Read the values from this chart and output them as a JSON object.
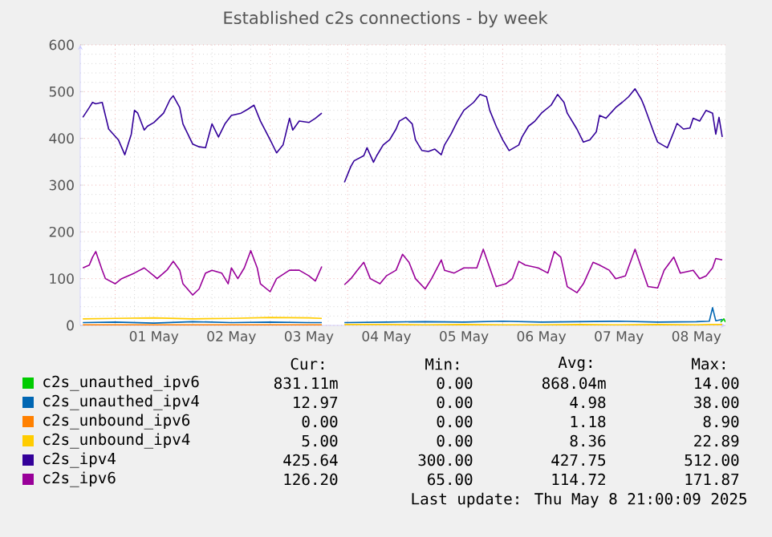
{
  "chart_data": {
    "type": "line",
    "title": "Established c2s connections - by week",
    "xlim": [
      "2025-04-30T13:12",
      "2025-05-08T21:00"
    ],
    "ylim": [
      0,
      600
    ],
    "xticks": [
      {
        "value": "2025-05-01T00:00",
        "label": null
      },
      {
        "value": "2025-05-01T12:00",
        "label": "01 May"
      },
      {
        "value": "2025-05-02T00:00",
        "label": null
      },
      {
        "value": "2025-05-02T12:00",
        "label": "02 May"
      },
      {
        "value": "2025-05-03T00:00",
        "label": null
      },
      {
        "value": "2025-05-03T12:00",
        "label": "03 May"
      },
      {
        "value": "2025-05-04T00:00",
        "label": null
      },
      {
        "value": "2025-05-04T12:00",
        "label": "04 May"
      },
      {
        "value": "2025-05-05T00:00",
        "label": null
      },
      {
        "value": "2025-05-05T12:00",
        "label": "05 May"
      },
      {
        "value": "2025-05-06T00:00",
        "label": null
      },
      {
        "value": "2025-05-06T12:00",
        "label": "06 May"
      },
      {
        "value": "2025-05-07T00:00",
        "label": null
      },
      {
        "value": "2025-05-07T12:00",
        "label": "07 May"
      },
      {
        "value": "2025-05-08T00:00",
        "label": null
      },
      {
        "value": "2025-05-08T12:00",
        "label": "08 May"
      }
    ],
    "yticks": [
      0,
      100,
      200,
      300,
      400,
      500,
      600
    ],
    "grid": true,
    "legend": "bottom",
    "marker": "none",
    "line_style": "solid",
    "series": [
      {
        "name": "c2s_unauthed_ipv6",
        "color": "#00cc00",
        "x": [
          "2025-05-08T19:30",
          "2025-05-08T20:30",
          "2025-05-08T21:00"
        ],
        "values": [
          7,
          14,
          7
        ]
      },
      {
        "name": "c2s_unauthed_ipv4",
        "color": "#0066b3",
        "x": [
          "2025-04-30T14:00",
          "2025-05-01T00:00",
          "2025-05-01T12:00",
          "2025-05-02T00:00",
          "2025-05-02T12:00",
          "2025-05-03T00:00",
          "2025-05-03T12:00",
          "2025-05-03T16:00",
          "2025-05-03T19:00",
          "2025-05-03T23:00",
          "2025-05-04T12:00",
          "2025-05-05T00:00",
          "2025-05-05T12:00",
          "2025-05-06T00:00",
          "2025-05-06T12:00",
          "2025-05-07T00:00",
          "2025-05-07T12:00",
          "2025-05-08T00:00",
          "2025-05-08T12:00",
          "2025-05-08T16:00",
          "2025-05-08T17:00",
          "2025-05-08T18:00",
          "2025-05-08T20:00"
        ],
        "values": [
          6,
          7,
          5,
          8,
          6,
          7,
          6,
          6,
          null,
          6,
          7,
          8,
          7,
          9,
          7,
          8,
          9,
          7,
          8,
          9,
          38,
          10,
          13
        ]
      },
      {
        "name": "c2s_unbound_ipv6",
        "color": "#ff8000",
        "x": [
          "2025-04-30T14:00",
          "2025-05-01T00:00",
          "2025-05-01T12:00",
          "2025-05-02T00:00",
          "2025-05-02T12:00",
          "2025-05-03T00:00",
          "2025-05-03T12:00",
          "2025-05-03T16:00"
        ],
        "values": [
          1,
          1,
          1,
          1,
          1,
          1,
          1,
          1
        ]
      },
      {
        "name": "c2s_unbound_ipv4",
        "color": "#ffcc00",
        "x": [
          "2025-04-30T14:00",
          "2025-05-01T00:00",
          "2025-05-01T12:00",
          "2025-05-02T00:00",
          "2025-05-02T12:00",
          "2025-05-03T00:00",
          "2025-05-03T12:00",
          "2025-05-03T16:00",
          "2025-05-03T19:00",
          "2025-05-03T23:00",
          "2025-05-04T12:00",
          "2025-05-05T00:00",
          "2025-05-05T12:00",
          "2025-05-06T00:00",
          "2025-05-06T12:00",
          "2025-05-07T00:00",
          "2025-05-07T12:00",
          "2025-05-08T00:00",
          "2025-05-08T12:00",
          "2025-05-08T16:00",
          "2025-05-08T17:00",
          "2025-05-08T18:00",
          "2025-05-08T20:00"
        ],
        "values": [
          14,
          15,
          16,
          14,
          15,
          17,
          16,
          15,
          null,
          2,
          2,
          1,
          2,
          1,
          1,
          2,
          1,
          2,
          1,
          2,
          2,
          2,
          2
        ]
      },
      {
        "name": "c2s_ipv4",
        "color": "#330099",
        "x": [
          "2025-04-30T14:00",
          "2025-04-30T16:00",
          "2025-04-30T17:00",
          "2025-04-30T18:00",
          "2025-04-30T20:00",
          "2025-04-30T22:00",
          "2025-05-01T01:00",
          "2025-05-01T03:00",
          "2025-05-01T05:00",
          "2025-05-01T06:00",
          "2025-05-01T07:00",
          "2025-05-01T09:00",
          "2025-05-01T10:00",
          "2025-05-01T12:00",
          "2025-05-01T15:00",
          "2025-05-01T17:00",
          "2025-05-01T18:00",
          "2025-05-01T20:00",
          "2025-05-01T21:00",
          "2025-05-02T00:00",
          "2025-05-02T02:00",
          "2025-05-02T04:00",
          "2025-05-02T06:00",
          "2025-05-02T08:00",
          "2025-05-02T10:00",
          "2025-05-02T12:00",
          "2025-05-02T15:00",
          "2025-05-02T17:00",
          "2025-05-02T19:00",
          "2025-05-02T21:00",
          "2025-05-03T00:00",
          "2025-05-03T02:00",
          "2025-05-03T04:00",
          "2025-05-03T06:00",
          "2025-05-03T07:00",
          "2025-05-03T09:00",
          "2025-05-03T12:00",
          "2025-05-03T14:00",
          "2025-05-03T16:00",
          "2025-05-03T19:00",
          "2025-05-03T23:00",
          "2025-05-04T01:00",
          "2025-05-04T02:00",
          "2025-05-04T05:00",
          "2025-05-04T06:00",
          "2025-05-04T08:00",
          "2025-05-04T09:00",
          "2025-05-04T11:00",
          "2025-05-04T13:00",
          "2025-05-04T15:00",
          "2025-05-04T16:00",
          "2025-05-04T18:00",
          "2025-05-04T20:00",
          "2025-05-04T21:00",
          "2025-05-04T23:00",
          "2025-05-05T01:00",
          "2025-05-05T03:00",
          "2025-05-05T05:00",
          "2025-05-05T06:00",
          "2025-05-05T08:00",
          "2025-05-05T10:00",
          "2025-05-05T12:00",
          "2025-05-05T15:00",
          "2025-05-05T17:00",
          "2025-05-05T19:00",
          "2025-05-05T20:00",
          "2025-05-05T22:00",
          "2025-05-06T00:00",
          "2025-05-06T02:00",
          "2025-05-06T05:00",
          "2025-05-06T06:00",
          "2025-05-06T08:00",
          "2025-05-06T10:00",
          "2025-05-06T12:00",
          "2025-05-06T15:00",
          "2025-05-06T17:00",
          "2025-05-06T19:00",
          "2025-05-06T20:00",
          "2025-05-06T23:00",
          "2025-05-07T01:00",
          "2025-05-07T03:00",
          "2025-05-07T05:00",
          "2025-05-07T06:00",
          "2025-05-07T08:00",
          "2025-05-07T11:00",
          "2025-05-07T13:00",
          "2025-05-07T15:00",
          "2025-05-07T17:00",
          "2025-05-07T19:00",
          "2025-05-07T20:00",
          "2025-05-07T23:00",
          "2025-05-08T00:00",
          "2025-05-08T03:00",
          "2025-05-08T05:00",
          "2025-05-08T06:00",
          "2025-05-08T08:00",
          "2025-05-08T10:00",
          "2025-05-08T11:00",
          "2025-05-08T13:00",
          "2025-05-08T15:00",
          "2025-05-08T17:00",
          "2025-05-08T18:00",
          "2025-05-08T19:00",
          "2025-05-08T20:00"
        ],
        "values": [
          445,
          466,
          477,
          474,
          477,
          420,
          397,
          365,
          409,
          460,
          454,
          418,
          426,
          434,
          454,
          483,
          491,
          466,
          431,
          388,
          382,
          380,
          431,
          403,
          431,
          449,
          454,
          462,
          471,
          437,
          397,
          369,
          386,
          443,
          418,
          437,
          434,
          443,
          454,
          null,
          306,
          340,
          352,
          363,
          380,
          349,
          363,
          386,
          397,
          420,
          437,
          445,
          431,
          397,
          374,
          372,
          377,
          365,
          386,
          409,
          437,
          460,
          477,
          494,
          489,
          460,
          426,
          397,
          374,
          386,
          403,
          426,
          437,
          454,
          471,
          494,
          477,
          454,
          420,
          392,
          397,
          414,
          449,
          443,
          466,
          477,
          489,
          506,
          483,
          466,
          409,
          392,
          380,
          414,
          432,
          420,
          422,
          443,
          437,
          460,
          454,
          409,
          445,
          403
        ]
      },
      {
        "name": "c2s_ipv6",
        "color": "#990099",
        "x": [
          "2025-04-30T14:00",
          "2025-04-30T16:00",
          "2025-04-30T17:00",
          "2025-04-30T18:00",
          "2025-04-30T20:00",
          "2025-04-30T21:00",
          "2025-05-01T00:00",
          "2025-05-01T02:00",
          "2025-05-01T06:00",
          "2025-05-01T09:00",
          "2025-05-01T12:00",
          "2025-05-01T13:00",
          "2025-05-01T16:00",
          "2025-05-01T18:00",
          "2025-05-01T20:00",
          "2025-05-01T21:00",
          "2025-05-02T00:00",
          "2025-05-02T02:00",
          "2025-05-02T04:00",
          "2025-05-02T06:00",
          "2025-05-02T09:00",
          "2025-05-02T11:00",
          "2025-05-02T12:00",
          "2025-05-02T14:00",
          "2025-05-02T16:00",
          "2025-05-02T18:00",
          "2025-05-02T20:00",
          "2025-05-02T21:00",
          "2025-05-03T00:00",
          "2025-05-03T02:00",
          "2025-05-03T06:00",
          "2025-05-03T09:00",
          "2025-05-03T12:00",
          "2025-05-03T14:00",
          "2025-05-03T16:00",
          "2025-05-03T19:00",
          "2025-05-03T23:00",
          "2025-05-04T01:00",
          "2025-05-04T03:00",
          "2025-05-04T05:00",
          "2025-05-04T07:00",
          "2025-05-04T10:00",
          "2025-05-04T12:00",
          "2025-05-04T15:00",
          "2025-05-04T17:00",
          "2025-05-04T19:00",
          "2025-05-04T21:00",
          "2025-05-05T00:00",
          "2025-05-05T02:00",
          "2025-05-05T05:00",
          "2025-05-05T06:00",
          "2025-05-05T09:00",
          "2025-05-05T12:00",
          "2025-05-05T16:00",
          "2025-05-05T18:00",
          "2025-05-05T20:00",
          "2025-05-05T22:00",
          "2025-05-06T01:00",
          "2025-05-06T03:00",
          "2025-05-06T05:00",
          "2025-05-06T07:00",
          "2025-05-06T11:00",
          "2025-05-06T14:00",
          "2025-05-06T16:00",
          "2025-05-06T18:00",
          "2025-05-06T20:00",
          "2025-05-06T23:00",
          "2025-05-07T01:00",
          "2025-05-07T04:00",
          "2025-05-07T06:00",
          "2025-05-07T09:00",
          "2025-05-07T11:00",
          "2025-05-07T14:00",
          "2025-05-07T17:00",
          "2025-05-07T19:00",
          "2025-05-07T21:00",
          "2025-05-08T00:00",
          "2025-05-08T02:00",
          "2025-05-08T05:00",
          "2025-05-08T07:00",
          "2025-05-08T11:00",
          "2025-05-08T13:00",
          "2025-05-08T15:00",
          "2025-05-08T17:00",
          "2025-05-08T18:00",
          "2025-05-08T20:00"
        ],
        "values": [
          123,
          129,
          146,
          158,
          118,
          100,
          89,
          100,
          112,
          123,
          106,
          100,
          118,
          137,
          118,
          89,
          65,
          78,
          112,
          118,
          112,
          89,
          123,
          100,
          123,
          160,
          123,
          89,
          72,
          100,
          118,
          118,
          106,
          95,
          126,
          null,
          87,
          100,
          118,
          135,
          100,
          89,
          106,
          118,
          152,
          135,
          100,
          78,
          100,
          140,
          118,
          112,
          123,
          123,
          163,
          123,
          83,
          89,
          100,
          137,
          129,
          123,
          112,
          158,
          146,
          83,
          70,
          89,
          135,
          129,
          118,
          100,
          106,
          163,
          123,
          83,
          80,
          118,
          146,
          112,
          118,
          100,
          106,
          123,
          143,
          140
        ]
      }
    ],
    "annotations": [
      "Cur:",
      "Min:",
      "Avg:",
      "Max:",
      "831.11m",
      "0.00",
      "868.04m",
      "14.00",
      "12.97",
      "0.00",
      "4.98",
      "38.00",
      "0.00",
      "0.00",
      "1.18",
      "8.90",
      "5.00",
      "0.00",
      "8.36",
      "22.89",
      "425.64",
      "300.00",
      "427.75",
      "512.00",
      "126.20",
      "65.00",
      "114.72",
      "171.87",
      "Last update: Thu May  8 21:00:09 2025"
    ]
  }
}
